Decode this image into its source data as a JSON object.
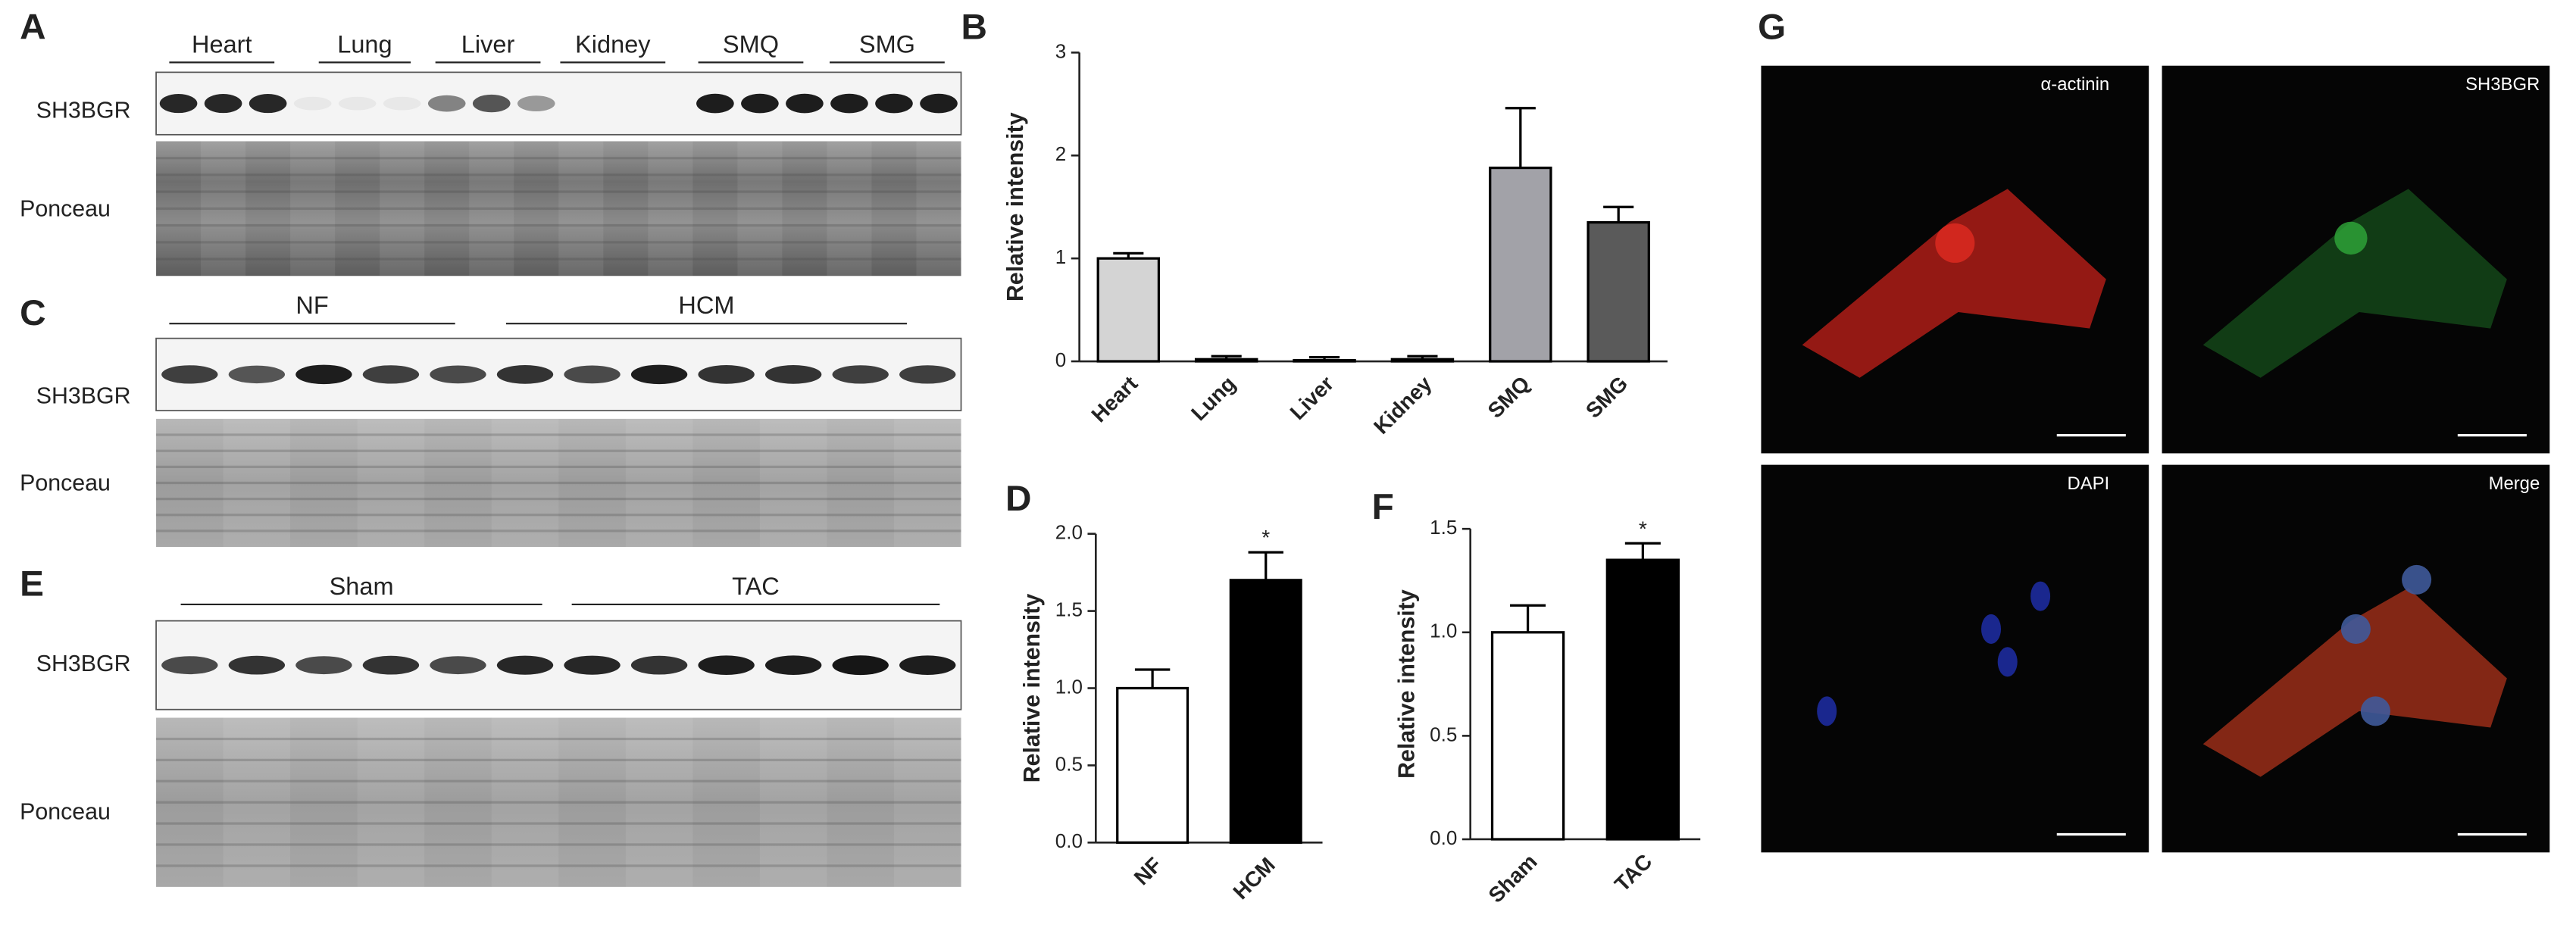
{
  "figure": {
    "panel_labels": [
      "A",
      "B",
      "C",
      "D",
      "E",
      "F",
      "G"
    ],
    "blot_a": {
      "groups": [
        "Heart",
        "Lung",
        "Liver",
        "Kidney",
        "SMQ",
        "SMG"
      ],
      "rows": [
        "SH3BGR",
        "Ponceau"
      ]
    },
    "blot_c": {
      "groups": [
        "NF",
        "HCM"
      ],
      "rows": [
        "SH3BGR",
        "Ponceau"
      ]
    },
    "blot_e": {
      "groups": [
        "Sham",
        "TAC"
      ],
      "rows": [
        "SH3BGR",
        "Ponceau"
      ]
    },
    "micrographs": [
      "α-actinin",
      "SH3BGR",
      "DAPI",
      "Merge"
    ]
  },
  "chart_data": [
    {
      "type": "bar",
      "categories": [
        "Heart",
        "Lung",
        "Liver",
        "Kidney",
        "SMQ",
        "SMG"
      ],
      "values": [
        1.0,
        0.02,
        0.01,
        0.02,
        1.88,
        1.35
      ],
      "errors": [
        0.05,
        0.03,
        0.03,
        0.03,
        0.58,
        0.15
      ],
      "colors": [
        "#d4d4d4",
        "#c8c8c8",
        "#bdbdbd",
        "#b0b0b0",
        "#a2a2a8",
        "#5a5a5a"
      ],
      "y_label": "Relative intensity",
      "ylim": [
        0,
        3
      ],
      "yticks": [
        0,
        1,
        2,
        3
      ]
    },
    {
      "type": "bar",
      "categories": [
        "NF",
        "HCM"
      ],
      "values": [
        1.0,
        1.7
      ],
      "errors": [
        0.12,
        0.18
      ],
      "colors": [
        "#ffffff",
        "#000000"
      ],
      "significance": [
        null,
        "*"
      ],
      "y_label": "Relative intensity",
      "ylim": [
        0,
        2
      ],
      "yticks": [
        {
          "value": 0,
          "label": "0.0"
        },
        {
          "value": 0.5,
          "label": "0.5"
        },
        {
          "value": 1,
          "label": "1.0"
        },
        {
          "value": 1.5,
          "label": "1.5"
        },
        {
          "value": 2,
          "label": "2.0"
        }
      ]
    },
    {
      "type": "bar",
      "categories": [
        "Sham",
        "TAC"
      ],
      "values": [
        1.0,
        1.35
      ],
      "errors": [
        0.13,
        0.08
      ],
      "colors": [
        "#ffffff",
        "#000000"
      ],
      "significance": [
        null,
        "*"
      ],
      "y_label": "Relative intensity",
      "ylim": [
        0,
        1.5
      ],
      "yticks": [
        {
          "value": 0,
          "label": "0.0"
        },
        {
          "value": 0.5,
          "label": "0.5"
        },
        {
          "value": 1,
          "label": "1.0"
        },
        {
          "value": 1.5,
          "label": "1.5"
        }
      ]
    }
  ]
}
